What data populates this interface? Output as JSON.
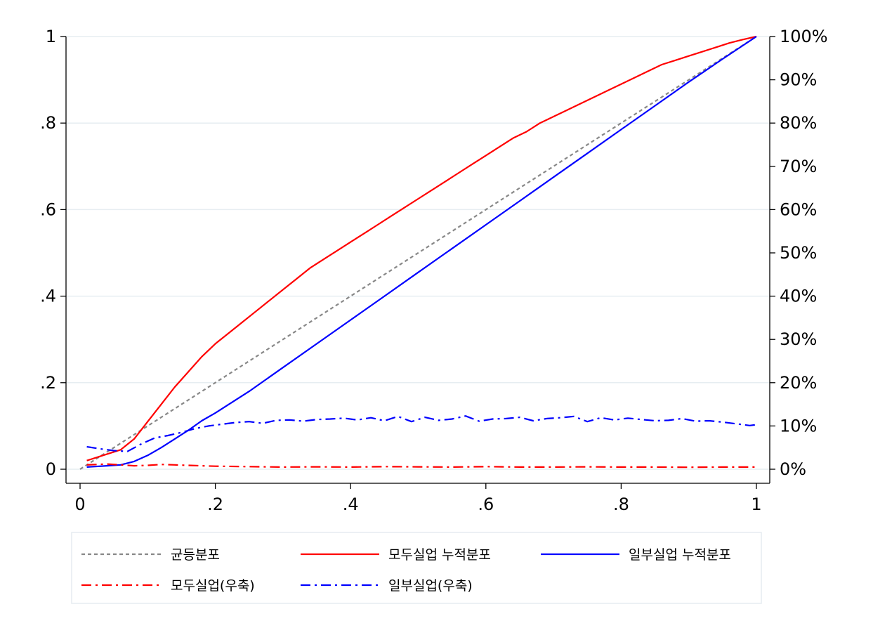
{
  "chart_data": {
    "type": "line",
    "title": "",
    "xlabel": "",
    "ylabel": "",
    "xlim": [
      0,
      1
    ],
    "ylim": [
      0,
      1
    ],
    "y2lim": [
      0,
      100
    ],
    "grid": true,
    "legend_position": "bottom",
    "x_ticks": [
      {
        "value": 0,
        "label": "0"
      },
      {
        "value": 0.2,
        "label": ".2"
      },
      {
        "value": 0.4,
        "label": ".4"
      },
      {
        "value": 0.6,
        "label": ".6"
      },
      {
        "value": 0.8,
        "label": ".8"
      },
      {
        "value": 1,
        "label": "1"
      }
    ],
    "y_ticks": [
      {
        "value": 0,
        "label": "0"
      },
      {
        "value": 0.2,
        "label": ".2"
      },
      {
        "value": 0.4,
        "label": ".4"
      },
      {
        "value": 0.6,
        "label": ".6"
      },
      {
        "value": 0.8,
        "label": ".8"
      },
      {
        "value": 1,
        "label": "1"
      }
    ],
    "y2_ticks": [
      {
        "value": 0,
        "label": "0%"
      },
      {
        "value": 10,
        "label": "10%"
      },
      {
        "value": 20,
        "label": "20%"
      },
      {
        "value": 30,
        "label": "30%"
      },
      {
        "value": 40,
        "label": "40%"
      },
      {
        "value": 50,
        "label": "50%"
      },
      {
        "value": 60,
        "label": "60%"
      },
      {
        "value": 70,
        "label": "70%"
      },
      {
        "value": 80,
        "label": "80%"
      },
      {
        "value": 90,
        "label": "90%"
      },
      {
        "value": 100,
        "label": "100%"
      }
    ],
    "series": [
      {
        "name": "균등분포",
        "axis": "left",
        "color": "#888888",
        "dash": "dotted",
        "x": [
          0,
          1
        ],
        "y": [
          0,
          1
        ]
      },
      {
        "name": "모두실업 누적분포",
        "axis": "left",
        "color": "#ff0000",
        "dash": "solid",
        "x": [
          0.01,
          0.04,
          0.06,
          0.08,
          0.1,
          0.12,
          0.14,
          0.16,
          0.18,
          0.2,
          0.22,
          0.24,
          0.26,
          0.28,
          0.3,
          0.32,
          0.34,
          0.36,
          0.38,
          0.4,
          0.42,
          0.44,
          0.46,
          0.48,
          0.5,
          0.52,
          0.54,
          0.56,
          0.58,
          0.6,
          0.62,
          0.64,
          0.66,
          0.68,
          0.7,
          0.72,
          0.74,
          0.76,
          0.78,
          0.8,
          0.82,
          0.84,
          0.86,
          0.88,
          0.9,
          0.92,
          0.94,
          0.96,
          0.98,
          1.0
        ],
        "y": [
          0.02,
          0.035,
          0.045,
          0.07,
          0.11,
          0.15,
          0.19,
          0.225,
          0.26,
          0.29,
          0.315,
          0.34,
          0.365,
          0.39,
          0.415,
          0.44,
          0.465,
          0.485,
          0.505,
          0.525,
          0.545,
          0.565,
          0.585,
          0.605,
          0.625,
          0.645,
          0.665,
          0.685,
          0.705,
          0.725,
          0.745,
          0.765,
          0.78,
          0.8,
          0.815,
          0.83,
          0.845,
          0.86,
          0.875,
          0.89,
          0.905,
          0.92,
          0.935,
          0.945,
          0.955,
          0.965,
          0.975,
          0.985,
          0.993,
          1.0
        ]
      },
      {
        "name": "일부실업 누적분포",
        "axis": "left",
        "color": "#0000ff",
        "dash": "solid",
        "x": [
          0.01,
          0.04,
          0.06,
          0.08,
          0.1,
          0.12,
          0.14,
          0.16,
          0.18,
          0.2,
          0.25,
          0.3,
          0.35,
          0.4,
          0.45,
          0.5,
          0.55,
          0.6,
          0.65,
          0.7,
          0.75,
          0.8,
          0.85,
          0.9,
          0.95,
          1.0
        ],
        "y": [
          0.005,
          0.008,
          0.01,
          0.018,
          0.032,
          0.05,
          0.07,
          0.09,
          0.112,
          0.13,
          0.18,
          0.235,
          0.29,
          0.345,
          0.4,
          0.455,
          0.51,
          0.565,
          0.62,
          0.675,
          0.73,
          0.785,
          0.84,
          0.895,
          0.948,
          1.0
        ]
      },
      {
        "name": "모두실업(우축)",
        "axis": "right",
        "color": "#ff0000",
        "dash": "dashdot",
        "x": [
          0.01,
          0.04,
          0.06,
          0.08,
          0.1,
          0.12,
          0.14,
          0.16,
          0.18,
          0.2,
          0.25,
          0.3,
          0.35,
          0.4,
          0.45,
          0.5,
          0.55,
          0.6,
          0.65,
          0.7,
          0.75,
          0.8,
          0.85,
          0.9,
          0.95,
          1.0
        ],
        "y": [
          1.0,
          1.2,
          1.0,
          0.8,
          0.9,
          1.1,
          1.0,
          0.9,
          0.8,
          0.7,
          0.6,
          0.5,
          0.55,
          0.5,
          0.6,
          0.55,
          0.5,
          0.6,
          0.5,
          0.5,
          0.55,
          0.5,
          0.5,
          0.45,
          0.5,
          0.5
        ]
      },
      {
        "name": "일부실업(우축)",
        "axis": "right",
        "color": "#0000ff",
        "dash": "dashdot",
        "x": [
          0.01,
          0.03,
          0.05,
          0.07,
          0.09,
          0.11,
          0.13,
          0.15,
          0.17,
          0.19,
          0.21,
          0.23,
          0.25,
          0.27,
          0.29,
          0.31,
          0.33,
          0.35,
          0.37,
          0.39,
          0.41,
          0.43,
          0.45,
          0.47,
          0.49,
          0.51,
          0.53,
          0.55,
          0.57,
          0.59,
          0.61,
          0.63,
          0.65,
          0.67,
          0.69,
          0.71,
          0.73,
          0.75,
          0.77,
          0.79,
          0.81,
          0.83,
          0.85,
          0.87,
          0.89,
          0.91,
          0.93,
          0.95,
          0.97,
          0.99,
          1.0
        ],
        "y": [
          5.2,
          4.7,
          4.3,
          4.1,
          5.8,
          7.2,
          7.8,
          8.5,
          9.4,
          10.0,
          10.4,
          10.8,
          11.0,
          10.6,
          11.3,
          11.4,
          11.1,
          11.5,
          11.6,
          11.8,
          11.4,
          11.9,
          11.2,
          12.2,
          11.0,
          12.0,
          11.3,
          11.6,
          12.3,
          11.1,
          11.6,
          11.7,
          12.0,
          11.2,
          11.7,
          11.9,
          12.2,
          11.0,
          11.9,
          11.4,
          11.8,
          11.5,
          11.2,
          11.3,
          11.7,
          11.1,
          11.2,
          10.9,
          10.5,
          10.1,
          10.3
        ]
      }
    ],
    "legend": {
      "entries": [
        {
          "label": "균등분포",
          "color": "#888888",
          "dash": "dotted"
        },
        {
          "label": "모두실업 누적분포",
          "color": "#ff0000",
          "dash": "solid"
        },
        {
          "label": "일부실업 누적분포",
          "color": "#0000ff",
          "dash": "solid"
        },
        {
          "label": "모두실업(우축)",
          "color": "#ff0000",
          "dash": "dashdot"
        },
        {
          "label": "일부실업(우축)",
          "color": "#0000ff",
          "dash": "dashdot"
        }
      ]
    }
  }
}
